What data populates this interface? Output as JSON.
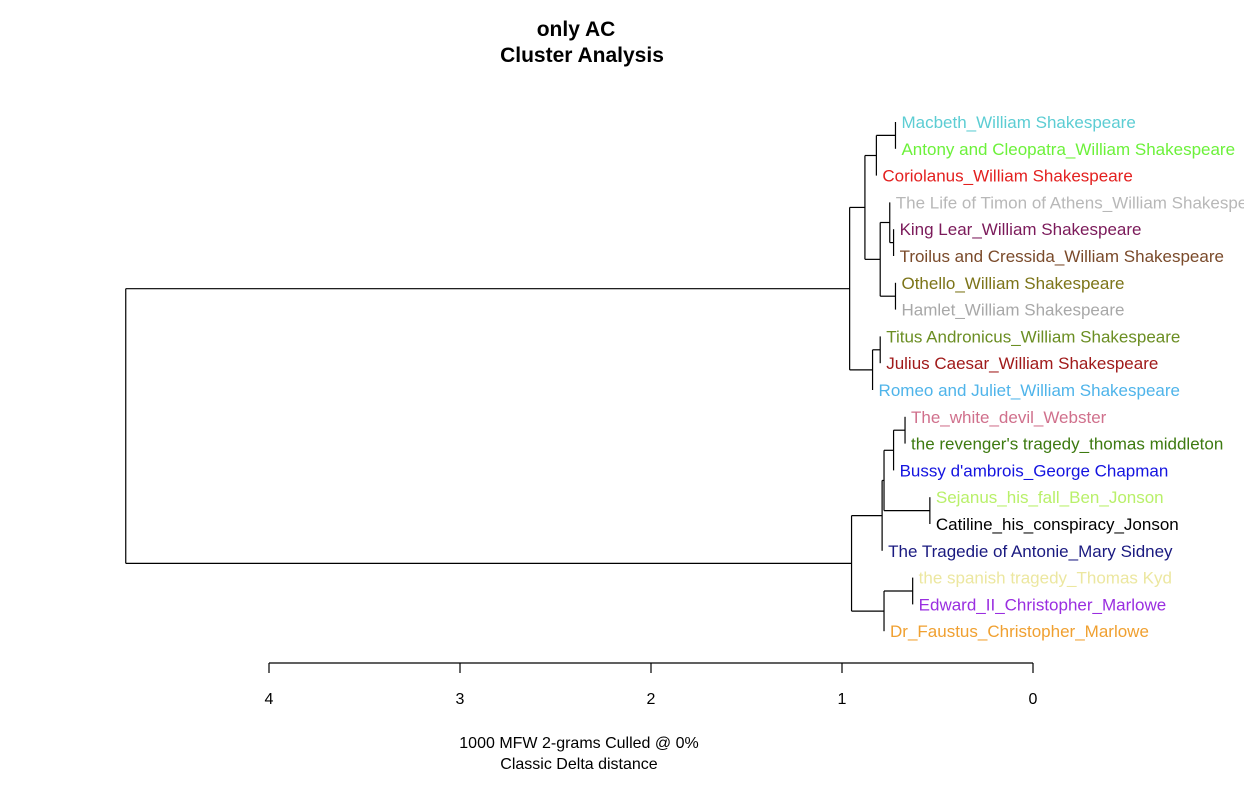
{
  "chart_data": {
    "type": "dendrogram",
    "title": "only AC",
    "subtitle": "Cluster Analysis",
    "xlabel": "1000 MFW 2-grams Culled @ 0%",
    "xlabel2": "Classic Delta distance",
    "xlim": [
      4,
      0
    ],
    "ticks": [
      "4",
      "3",
      "2",
      "1",
      "0"
    ],
    "leaves": [
      {
        "label": "Macbeth_William Shakespeare",
        "color": "#5ccdd3"
      },
      {
        "label": "Antony and Cleopatra_William Shakespeare",
        "color": "#6cf13a"
      },
      {
        "label": "Coriolanus_William Shakespeare",
        "color": "#e3201f"
      },
      {
        "label": "The Life of Timon of Athens_William Shakespeare",
        "color": "#b8b8b8"
      },
      {
        "label": "King Lear_William Shakespeare",
        "color": "#7b1a5a"
      },
      {
        "label": "Troilus and Cressida_William Shakespeare",
        "color": "#7a4a2a"
      },
      {
        "label": "Othello_William Shakespeare",
        "color": "#7c7418"
      },
      {
        "label": "Hamlet_William Shakespeare",
        "color": "#a8a8a8"
      },
      {
        "label": "Titus Andronicus_William Shakespeare",
        "color": "#6b8e23"
      },
      {
        "label": "Julius Caesar_William Shakespeare",
        "color": "#a01a1a"
      },
      {
        "label": "Romeo and Juliet_William Shakespeare",
        "color": "#4fb4ea"
      },
      {
        "label": "The_white_devil_Webster",
        "color": "#d0708c"
      },
      {
        "label": "the revenger's tragedy_thomas middleton",
        "color": "#3d7a10"
      },
      {
        "label": "Bussy d'ambrois_George Chapman",
        "color": "#1414e0"
      },
      {
        "label": "Sejanus_his_fall_Ben_Jonson",
        "color": "#b9f06a"
      },
      {
        "label": "Catiline_his_conspiracy_Jonson",
        "color": "#000000"
      },
      {
        "label": "The Tragedie of Antonie_Mary Sidney",
        "color": "#1a1a80"
      },
      {
        "label": "the spanish tragedy_Thomas Kyd",
        "color": "#ece7a0"
      },
      {
        "label": "Edward_II_Christopher_Marlowe",
        "color": "#9a2ee0"
      },
      {
        "label": "Dr_Faustus_Christopher_Marlowe",
        "color": "#f0a030"
      }
    ],
    "merges": [
      {
        "a": 0,
        "b": 1,
        "height": 0.72
      },
      {
        "a": 4,
        "b": 5,
        "height": 0.73
      },
      {
        "a": 6,
        "b": 7,
        "height": 0.72
      },
      {
        "a": 8,
        "b": 9,
        "height": 0.8
      },
      {
        "a": 11,
        "b": 12,
        "height": 0.67
      },
      {
        "a": 14,
        "b": 15,
        "height": 0.54
      },
      {
        "a": 17,
        "b": 18,
        "height": 0.63
      },
      {
        "a": "n0",
        "b": 2,
        "height": 0.82
      },
      {
        "a": 3,
        "b": "n1",
        "height": 0.75
      },
      {
        "a": "n8",
        "b": "n2",
        "height": 0.8
      },
      {
        "a": "n7",
        "b": "n9",
        "height": 0.88
      },
      {
        "a": "n3",
        "b": 10,
        "height": 0.84
      },
      {
        "a": "n10",
        "b": "n11",
        "height": 0.96
      },
      {
        "a": "n4",
        "b": 13,
        "height": 0.73
      },
      {
        "a": "n13",
        "b": "n5",
        "height": 0.78
      },
      {
        "a": "n14",
        "b": 16,
        "height": 0.79
      },
      {
        "a": "n6",
        "b": 19,
        "height": 0.78
      },
      {
        "a": "n15",
        "b": "n16",
        "height": 0.95
      },
      {
        "a": "n12",
        "b": "n17",
        "height": 4.75
      }
    ]
  }
}
